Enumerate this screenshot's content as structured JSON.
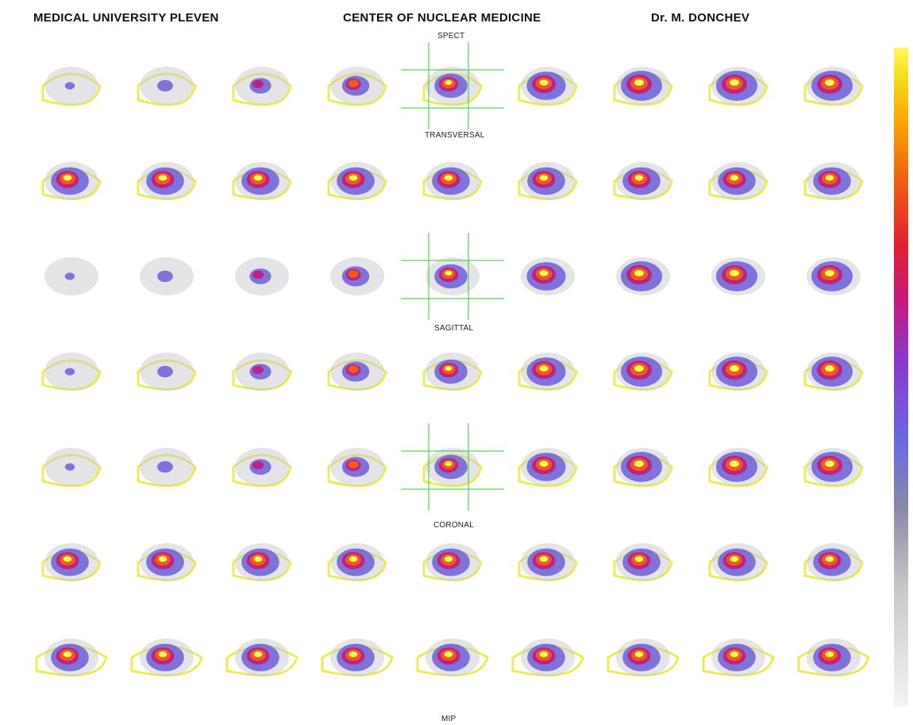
{
  "header": {
    "left": "MEDICAL UNIVERSITY PLEVEN",
    "center": "CENTER OF NUCLEAR MEDICINE",
    "right": "Dr. M. DONCHEV"
  },
  "labels": {
    "spect": "SPECT",
    "transversal": "TRANSVERSAL",
    "sagittal": "SAGITTAL",
    "coronal": "CORONAL",
    "mip": "MIP"
  },
  "layout_info": {
    "rows": 7,
    "columns": 9
  },
  "colors": {
    "background": "#ffffff",
    "outline": "#e8e838",
    "crosshair": "#32c832",
    "low": "#c9c9d0",
    "mid": "#6b5fd8",
    "high": "#c8187a",
    "hot": "#f06010",
    "max": "#fff860"
  }
}
